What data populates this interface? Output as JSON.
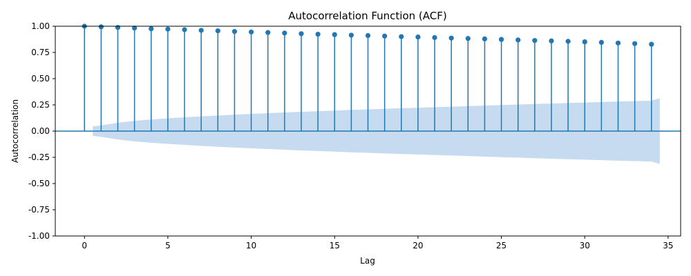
{
  "chart_data": {
    "type": "stem",
    "title": "Autocorrelation Function (ACF)",
    "xlabel": "Lag",
    "ylabel": "Autocorrelation",
    "xlim": [
      -1.75,
      35.75
    ],
    "ylim": [
      -1.0,
      1.0
    ],
    "xticks": [
      0,
      5,
      10,
      15,
      20,
      25,
      30,
      35
    ],
    "yticks": [
      -1.0,
      -0.75,
      -0.5,
      -0.25,
      0.0,
      0.25,
      0.5,
      0.75,
      1.0
    ],
    "ytick_labels": [
      "-1.00",
      "-0.75",
      "-0.50",
      "-0.25",
      "0.00",
      "0.25",
      "0.50",
      "0.75",
      "1.00"
    ],
    "lags": [
      0,
      1,
      2,
      3,
      4,
      5,
      6,
      7,
      8,
      9,
      10,
      11,
      12,
      13,
      14,
      15,
      16,
      17,
      18,
      19,
      20,
      21,
      22,
      23,
      24,
      25,
      26,
      27,
      28,
      29,
      30,
      31,
      32,
      33,
      34
    ],
    "values": [
      1.0,
      0.994,
      0.988,
      0.982,
      0.976,
      0.972,
      0.967,
      0.961,
      0.956,
      0.95,
      0.945,
      0.94,
      0.935,
      0.929,
      0.924,
      0.92,
      0.915,
      0.911,
      0.906,
      0.901,
      0.897,
      0.892,
      0.887,
      0.883,
      0.879,
      0.874,
      0.869,
      0.864,
      0.86,
      0.856,
      0.851,
      0.846,
      0.84,
      0.834,
      0.828
    ],
    "confidence_band": {
      "x": [
        0.5,
        1,
        2,
        3,
        4,
        5,
        6,
        7,
        8,
        9,
        10,
        11,
        12,
        13,
        14,
        15,
        16,
        17,
        18,
        19,
        20,
        21,
        22,
        23,
        24,
        25,
        26,
        27,
        28,
        29,
        30,
        31,
        32,
        33,
        34,
        34.5
      ],
      "upper": [
        0.045,
        0.055,
        0.08,
        0.098,
        0.111,
        0.122,
        0.132,
        0.141,
        0.149,
        0.157,
        0.164,
        0.171,
        0.178,
        0.184,
        0.19,
        0.196,
        0.202,
        0.207,
        0.213,
        0.218,
        0.223,
        0.228,
        0.233,
        0.238,
        0.243,
        0.248,
        0.253,
        0.258,
        0.263,
        0.268,
        0.272,
        0.277,
        0.282,
        0.286,
        0.29,
        0.313
      ]
    },
    "colors": {
      "stem": "#1f77b4",
      "band": "#c6dbef",
      "zero_line": "#1f77b4",
      "axes": "#000000"
    },
    "grid": false,
    "legend": "none"
  }
}
